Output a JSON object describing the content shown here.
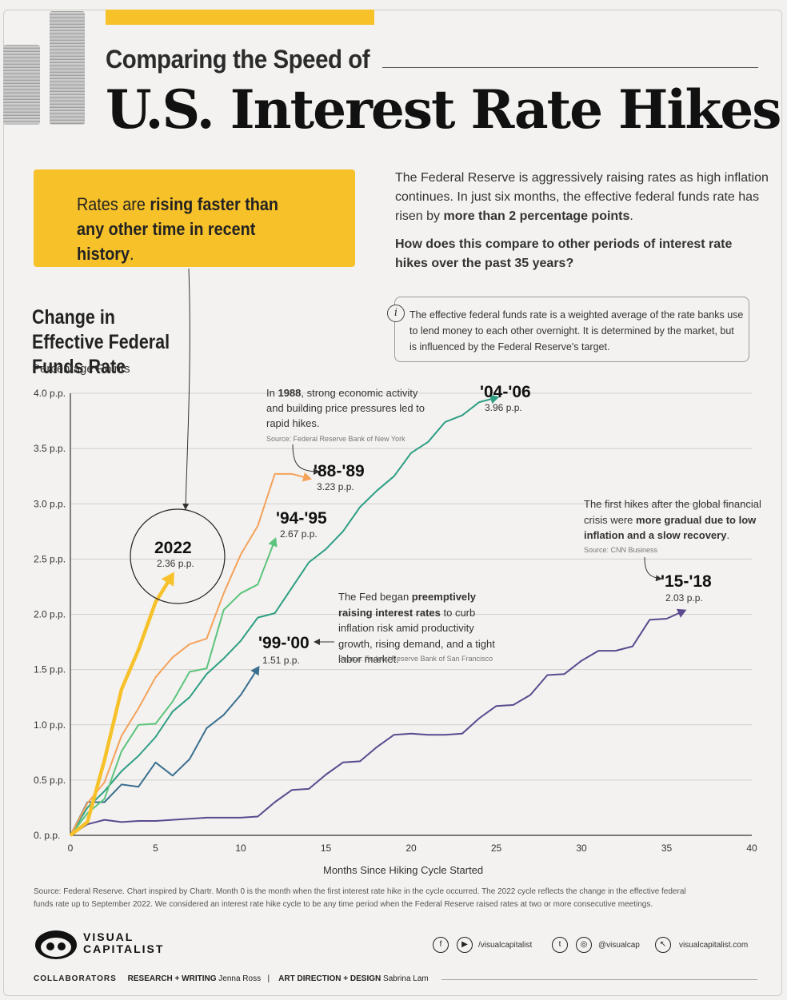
{
  "header": {
    "subtitle": "Comparing the Speed of",
    "title": "U.S. Interest Rate Hikes"
  },
  "callout": {
    "text_a": "Rates are ",
    "text_bold": "rising faster than any other time in recent history",
    "text_c": "."
  },
  "intro": {
    "text_a": "The Federal Reserve is aggressively raising rates as high inflation continues. In just six months, the effective federal funds rate has risen by ",
    "text_bold": "more than 2 percentage points",
    "text_c": ".",
    "question": "How does this compare to other periods of interest rate hikes over the past 35 years?"
  },
  "info": {
    "icon_glyph": "i",
    "text": "The effective federal funds rate is a weighted average of the rate banks use to lend money to each other overnight. It is determined by the market, but is influenced by the Federal Reserve's target."
  },
  "chart_data": {
    "type": "line",
    "title": "Change in Effective Federal Funds Rate",
    "ylabel": "Percentage Points",
    "xlabel": "Months Since Hiking Cycle Started",
    "xlim": [
      0,
      40
    ],
    "ylim": [
      0,
      4
    ],
    "x_ticks": [
      "0",
      "5",
      "10",
      "15",
      "20",
      "25",
      "30",
      "35",
      "40"
    ],
    "y_ticks": [
      "0. p.p.",
      "0.5 p.p.",
      "1.0 p.p.",
      "1.5 p.p.",
      "2.0 p.p.",
      "2.5 p.p.",
      "3.0 p.p.",
      "3.5 p.p.",
      "4.0 p.p."
    ],
    "grid": true,
    "series": [
      {
        "name": "'15-'18",
        "value_label": "2.03 p.p.",
        "color": "#5b4a8f",
        "x": [
          0,
          1,
          2,
          3,
          4,
          5,
          6,
          7,
          8,
          9,
          10,
          11,
          12,
          13,
          14,
          15,
          16,
          17,
          18,
          19,
          20,
          21,
          22,
          23,
          24,
          25,
          26,
          27,
          28,
          29,
          30,
          31,
          32,
          33,
          34,
          35,
          36
        ],
        "y": [
          0,
          0.1,
          0.14,
          0.12,
          0.13,
          0.13,
          0.14,
          0.15,
          0.16,
          0.16,
          0.16,
          0.17,
          0.3,
          0.41,
          0.42,
          0.55,
          0.66,
          0.67,
          0.8,
          0.91,
          0.92,
          0.91,
          0.91,
          0.92,
          1.06,
          1.17,
          1.18,
          1.27,
          1.45,
          1.46,
          1.58,
          1.67,
          1.67,
          1.71,
          1.95,
          1.96,
          2.03
        ]
      },
      {
        "name": "'99-'00",
        "value_label": "1.51 p.p.",
        "color": "#3a6f8f",
        "x": [
          0,
          1,
          2,
          3,
          4,
          5,
          6,
          7,
          8,
          9,
          10,
          11
        ],
        "y": [
          0,
          0.3,
          0.3,
          0.46,
          0.44,
          0.66,
          0.54,
          0.69,
          0.97,
          1.09,
          1.27,
          1.51
        ]
      },
      {
        "name": "'04-'06",
        "value_label": "3.96 p.p.",
        "color": "#2e9e83",
        "x": [
          0,
          1,
          2,
          3,
          4,
          5,
          6,
          7,
          8,
          9,
          10,
          11,
          12,
          13,
          14,
          15,
          16,
          17,
          18,
          19,
          20,
          21,
          22,
          23,
          24,
          25
        ],
        "y": [
          0,
          0.25,
          0.4,
          0.58,
          0.72,
          0.89,
          1.12,
          1.25,
          1.46,
          1.6,
          1.76,
          1.97,
          2.01,
          2.24,
          2.47,
          2.59,
          2.75,
          2.97,
          3.12,
          3.25,
          3.46,
          3.56,
          3.74,
          3.8,
          3.92,
          3.96
        ]
      },
      {
        "name": "'94-'95",
        "value_label": "2.67 p.p.",
        "color": "#5cc47c",
        "x": [
          0,
          1,
          2,
          3,
          4,
          5,
          6,
          7,
          8,
          9,
          10,
          11,
          12
        ],
        "y": [
          0,
          0.2,
          0.33,
          0.76,
          1.0,
          1.01,
          1.21,
          1.48,
          1.51,
          2.04,
          2.19,
          2.27,
          2.67
        ]
      },
      {
        "name": "'88-'89",
        "value_label": "3.23 p.p.",
        "color": "#f4a25a",
        "x": [
          0,
          1,
          2,
          3,
          4,
          5,
          6,
          7,
          8,
          9,
          10,
          11,
          12,
          13,
          14
        ],
        "y": [
          0,
          0.29,
          0.48,
          0.9,
          1.15,
          1.43,
          1.61,
          1.73,
          1.78,
          2.19,
          2.54,
          2.8,
          3.27,
          3.27,
          3.23
        ]
      },
      {
        "name": "2022",
        "value_label": "2.36 p.p.",
        "color": "#f7c12a",
        "x": [
          0,
          1,
          2,
          3,
          4,
          5,
          6
        ],
        "y": [
          0,
          0.12,
          0.68,
          1.32,
          1.68,
          2.11,
          2.36
        ]
      }
    ],
    "annotations": {
      "a1988_a": "In ",
      "a1988_b": "1988",
      "a1988_c": ", strong economic activity and building price pressures led to rapid hikes.",
      "a1988_src": "Source: Federal Reserve Bank of New York",
      "a9900_a": "The Fed began ",
      "a9900_b": "preemptively raising interest rates",
      "a9900_c": " to curb inflation risk amid productivity growth, rising demand, and a tight labor market.",
      "a9900_src": "Source: Federal Reserve Bank of San Francisco",
      "a1518_a": "The first hikes after the global financial crisis were ",
      "a1518_b": "more gradual due to low inflation and a slow recovery",
      "a1518_c": ".",
      "a1518_src": "Source: CNN Business"
    }
  },
  "footer": {
    "source": "Source: Federal Reserve. Chart inspired by Chartr. Month 0 is the month when the first interest rate hike in the cycle occurred. The 2022 cycle reflects the change in the effective federal funds rate up to September 2022. We considered an interest rate hike cycle to be any time period when the Federal Reserve raised rates at two or more consecutive meetings.",
    "logo_line1": "VISUAL",
    "logo_line2": "CAPITALIST",
    "social_handle1": "/visualcapitalist",
    "social_handle2": "@visualcap",
    "website": "visualcapitalist.com",
    "icons": [
      "facebook-icon",
      "youtube-icon",
      "twitter-icon",
      "instagram-icon",
      "cursor-icon"
    ],
    "collaborators_label": "COLLABORATORS",
    "research_label": "RESEARCH + WRITING",
    "research_name": "Jenna Ross",
    "separator": "|",
    "art_label": "ART DIRECTION + DESIGN",
    "art_name": "Sabrina Lam"
  }
}
